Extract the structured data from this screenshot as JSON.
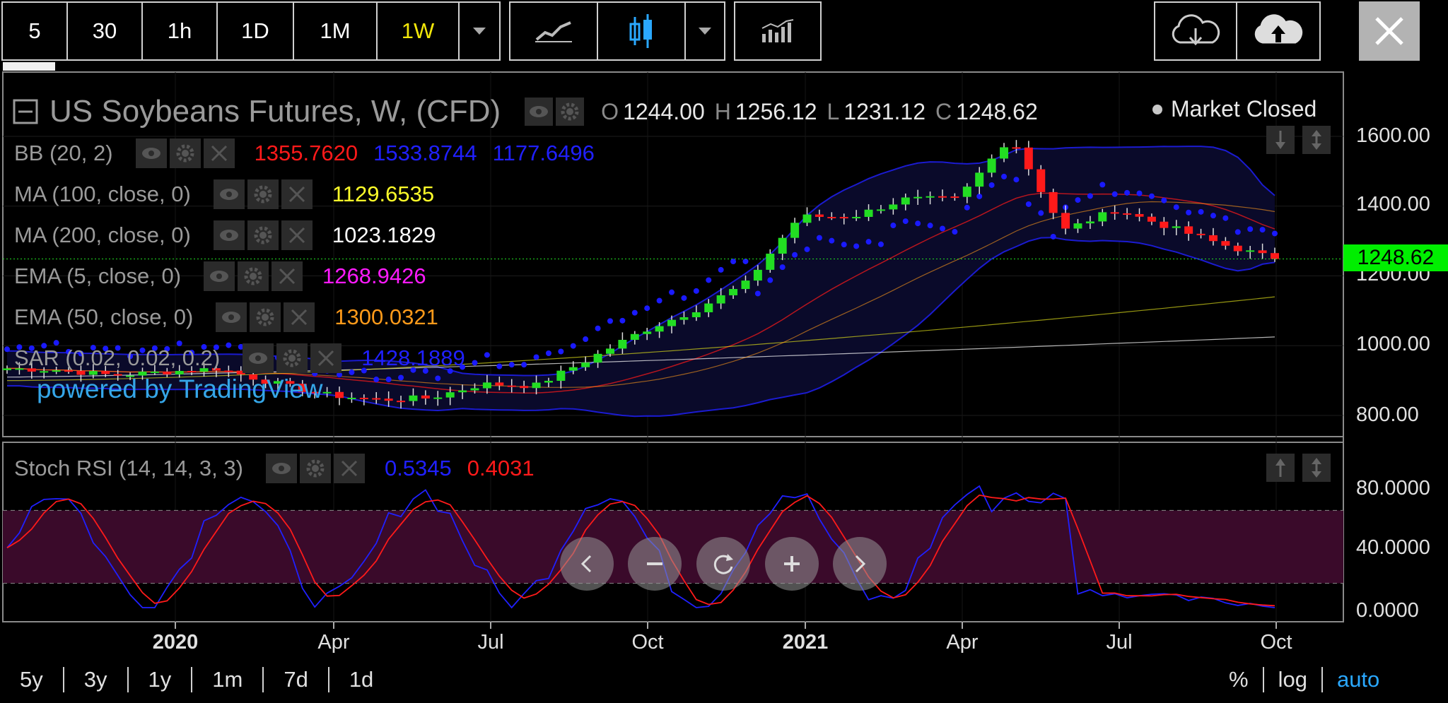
{
  "toolbar": {
    "intervals": [
      "5",
      "30",
      "1h",
      "1D",
      "1M",
      "1W"
    ],
    "active_interval": "1W"
  },
  "header": {
    "title": "US Soybeans Futures, W, (CFD)",
    "ohlc": {
      "o_label": "O",
      "o": "1244.00",
      "h_label": "H",
      "h": "1256.12",
      "l_label": "L",
      "l": "1231.12",
      "c_label": "C",
      "c": "1248.62"
    },
    "market_status": "Market Closed"
  },
  "indicators": [
    {
      "label": "BB (20, 2)",
      "values": [
        {
          "v": "1355.7620",
          "color": "#ff1a1a"
        },
        {
          "v": "1533.8744",
          "color": "#2020ff"
        },
        {
          "v": "1177.6496",
          "color": "#2020ff"
        }
      ]
    },
    {
      "label": "MA (100, close, 0)",
      "values": [
        {
          "v": "1129.6535",
          "color": "#ffff2a"
        }
      ]
    },
    {
      "label": "MA (200, close, 0)",
      "values": [
        {
          "v": "1023.1829",
          "color": "#ffffff"
        }
      ]
    },
    {
      "label": "EMA (5, close, 0)",
      "values": [
        {
          "v": "1268.9426",
          "color": "#ff1aff"
        }
      ]
    },
    {
      "label": "EMA (50, close, 0)",
      "values": [
        {
          "v": "1300.0321",
          "color": "#ff9a1a"
        }
      ]
    },
    {
      "label": "SAR (0.02, 0.02, 0.2)",
      "values": [
        {
          "v": "1428.1889",
          "color": "#2020ff"
        }
      ]
    }
  ],
  "stoch": {
    "label": "Stoch RSI (14, 14, 3, 3)",
    "k": "0.5345",
    "d": "0.4031",
    "k_color": "#2020ff",
    "d_color": "#ff1a1a"
  },
  "price_axis": [
    "1600.00",
    "1400.00",
    "1200.00",
    "1000.00",
    "800.00"
  ],
  "stoch_axis": [
    "80.0000",
    "40.0000",
    "0.0000"
  ],
  "time_axis": [
    {
      "label": "2020",
      "bold": true
    },
    {
      "label": "Apr",
      "bold": false
    },
    {
      "label": "Jul",
      "bold": false
    },
    {
      "label": "Oct",
      "bold": false
    },
    {
      "label": "2021",
      "bold": true
    },
    {
      "label": "Apr",
      "bold": false
    },
    {
      "label": "Jul",
      "bold": false
    },
    {
      "label": "Oct",
      "bold": false
    }
  ],
  "last_price": "1248.62",
  "powered_by": "powered by TradingView",
  "ranges": [
    "5y",
    "3y",
    "1y",
    "1m",
    "7d",
    "1d"
  ],
  "scale_buttons": [
    "%",
    "log",
    "auto"
  ],
  "colors": {
    "up": "#22dd22",
    "down": "#ff1a1a",
    "bb_band": "#2020ff",
    "bb_mid": "#ff1a1a",
    "ma100": "#d6d61a",
    "ma200": "#ffffff",
    "ema50": "#ff9a1a",
    "sar": "#1a1aff",
    "stoch_band": "#3a0a2a"
  },
  "chart_data": {
    "type": "candlestick",
    "title": "US Soybeans Futures, W, (CFD)",
    "interval": "1W",
    "ylim": [
      780,
      1720
    ],
    "series": [
      {
        "name": "price_path_approx",
        "x": [
          "2019-10-07",
          "2019-11-04",
          "2019-12-02",
          "2020-01-06",
          "2020-02-03",
          "2020-03-02",
          "2020-04-06",
          "2020-05-04",
          "2020-06-01",
          "2020-07-06",
          "2020-08-03",
          "2020-08-31",
          "2020-10-05",
          "2020-11-02",
          "2020-11-30",
          "2021-01-04",
          "2021-02-01",
          "2021-03-01",
          "2021-04-05",
          "2021-05-10",
          "2021-06-07",
          "2021-07-05",
          "2021-08-02",
          "2021-08-30",
          "2021-09-27"
        ],
        "y": [
          935,
          930,
          915,
          925,
          935,
          895,
          860,
          845,
          850,
          890,
          885,
          960,
          1040,
          1100,
          1180,
          1370,
          1370,
          1420,
          1420,
          1600,
          1330,
          1390,
          1340,
          1290,
          1248.62
        ]
      }
    ],
    "stoch_rsi": {
      "k": 0.5345,
      "d": 0.4031,
      "ylim": [
        0,
        100
      ],
      "levels": [
        80,
        20
      ]
    }
  }
}
